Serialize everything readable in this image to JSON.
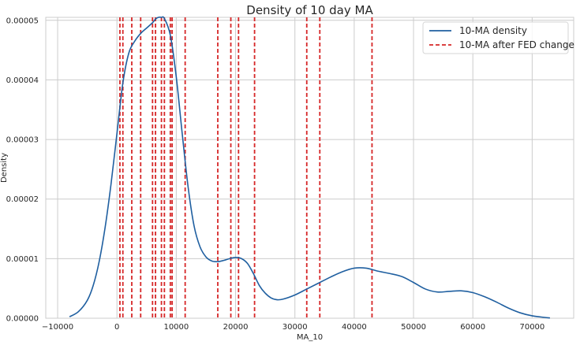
{
  "chart_data": {
    "type": "line",
    "title": "Density of 10 day MA",
    "xlabel": "MA_10",
    "ylabel": "Density",
    "xlim": [
      -12000,
      77000
    ],
    "ylim": [
      0,
      5.05e-05
    ],
    "x_ticks": [
      -10000,
      0,
      10000,
      20000,
      30000,
      40000,
      50000,
      60000,
      70000
    ],
    "x_tick_labels": [
      "−10000",
      "0",
      "10000",
      "20000",
      "30000",
      "40000",
      "50000",
      "60000",
      "70000"
    ],
    "y_ticks": [
      0,
      1e-05,
      2e-05,
      3e-05,
      4e-05,
      5e-05
    ],
    "y_tick_labels": [
      "0.00000",
      "0.00001",
      "0.00002",
      "0.00003",
      "0.00004",
      "0.00005"
    ],
    "grid": true,
    "legend_position": "top-right",
    "series": [
      {
        "name": "10-MA density",
        "kind": "line",
        "color": "#1f5fa0",
        "x": [
          -8000,
          -6500,
          -5000,
          -4000,
          -3000,
          -2000,
          -1000,
          0,
          1000,
          2000,
          3000,
          4000,
          5000,
          6000,
          6500,
          7000,
          7500,
          8000,
          9000,
          10000,
          11000,
          12000,
          13000,
          14000,
          15000,
          16000,
          17000,
          18000,
          19000,
          20000,
          21000,
          22000,
          23000,
          24000,
          25000,
          26000,
          27000,
          28000,
          30000,
          32000,
          34000,
          36000,
          38000,
          40000,
          42000,
          44000,
          46000,
          48000,
          50000,
          52000,
          54000,
          56000,
          58000,
          60000,
          62000,
          64000,
          66000,
          68000,
          70000,
          72000,
          73000
        ],
        "y": [
          2.5e-07,
          1.1e-06,
          3e-06,
          5.5e-06,
          9.5e-06,
          1.52e-05,
          2.25e-05,
          3.1e-05,
          3.95e-05,
          4.45e-05,
          4.65e-05,
          4.78e-05,
          4.87e-05,
          4.96e-05,
          5.02e-05,
          5.05e-05,
          5.05e-05,
          5.03e-05,
          4.75e-05,
          4.05e-05,
          3.1e-05,
          2.2e-05,
          1.55e-05,
          1.2e-05,
          1.03e-05,
          9.6e-06,
          9.5e-06,
          9.7e-06,
          1e-05,
          1.02e-05,
          1e-05,
          9.2e-06,
          7.5e-06,
          5.5e-06,
          4.2e-06,
          3.4e-06,
          3.1e-06,
          3.2e-06,
          3.9e-06,
          4.9e-06,
          5.9e-06,
          6.9e-06,
          7.8e-06,
          8.4e-06,
          8.4e-06,
          7.9e-06,
          7.5e-06,
          7e-06,
          6e-06,
          4.9e-06,
          4.4e-06,
          4.5e-06,
          4.6e-06,
          4.3e-06,
          3.6e-06,
          2.7e-06,
          1.7e-06,
          9e-07,
          4e-07,
          1.5e-07,
          5e-08
        ]
      },
      {
        "name": "10-MA after FED change",
        "kind": "vlines",
        "color": "#d62728",
        "x": [
          500,
          1000,
          2500,
          4000,
          6000,
          6500,
          7500,
          8000,
          9000,
          9300,
          11500,
          17000,
          19200,
          20500,
          23200,
          32000,
          34200,
          43000
        ]
      }
    ]
  }
}
